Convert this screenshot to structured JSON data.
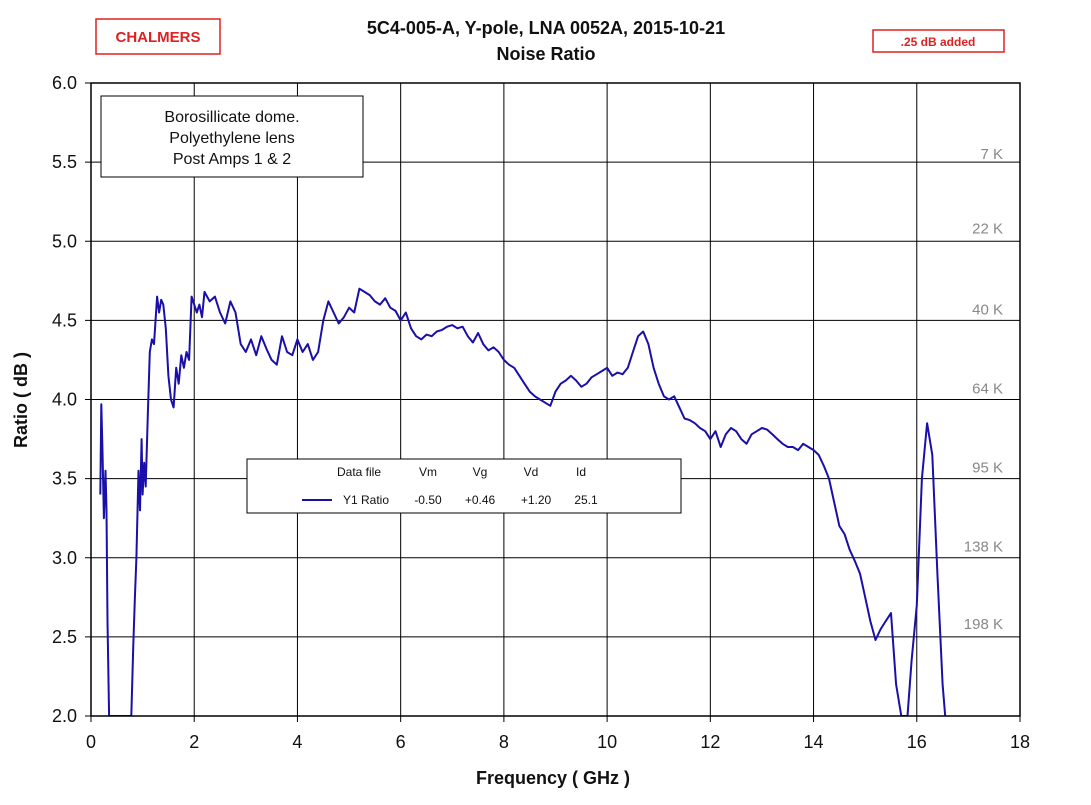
{
  "logo": "CHALMERS",
  "badge": ".25 dB added",
  "chart_data": {
    "type": "line",
    "title": "5C4-005-A,  Y-pole,  LNA 0052A,  2015-10-21",
    "subtitle": "Noise Ratio",
    "xlabel": "Frequency  ( GHz )",
    "ylabel": "Ratio  ( dB )",
    "xlim": [
      0,
      18
    ],
    "ylim": [
      2.0,
      6.0
    ],
    "xticks": [
      0,
      2,
      4,
      6,
      8,
      10,
      12,
      14,
      16,
      18
    ],
    "yticks": [
      2.0,
      2.5,
      3.0,
      3.5,
      4.0,
      4.5,
      5.0,
      5.5,
      6.0
    ],
    "ytick_labels": [
      "2.0",
      "2.5",
      "3.0",
      "3.5",
      "4.0",
      "4.5",
      "5.0",
      "5.5",
      "6.0"
    ],
    "grid": true,
    "temperature_labels": [
      {
        "label": "7 K",
        "y": 5.55
      },
      {
        "label": "22 K",
        "y": 5.08
      },
      {
        "label": "40 K",
        "y": 4.57
      },
      {
        "label": "64 K",
        "y": 4.07
      },
      {
        "label": "95 K",
        "y": 3.57
      },
      {
        "label": "138 K",
        "y": 3.07
      },
      {
        "label": "198 K",
        "y": 2.58
      }
    ],
    "annotation": [
      "Borosillicate dome.",
      "Polyethylene lens",
      "Post Amps 1 & 2"
    ],
    "legend": {
      "placement": "center",
      "headers": [
        "Data file",
        "Vm",
        "Vg",
        "Vd",
        "Id"
      ],
      "rows": [
        {
          "name": "Y1 Ratio",
          "Vm": "-0.50",
          "Vg": "+0.46",
          "Vd": "+1.20",
          "Id": "25.1"
        }
      ]
    },
    "series": [
      {
        "name": "Y1 Ratio",
        "color": "#1a0fa8",
        "x": [
          0.18,
          0.2,
          0.22,
          0.25,
          0.28,
          0.3,
          0.32,
          0.35,
          0.38,
          0.78,
          0.82,
          0.85,
          0.88,
          0.92,
          0.95,
          0.98,
          1.0,
          1.03,
          1.06,
          1.1,
          1.14,
          1.18,
          1.22,
          1.28,
          1.32,
          1.36,
          1.4,
          1.45,
          1.5,
          1.55,
          1.6,
          1.65,
          1.7,
          1.75,
          1.8,
          1.85,
          1.9,
          1.95,
          2.0,
          2.05,
          2.1,
          2.15,
          2.2,
          2.3,
          2.4,
          2.5,
          2.6,
          2.7,
          2.8,
          2.9,
          3.0,
          3.1,
          3.2,
          3.3,
          3.4,
          3.5,
          3.6,
          3.7,
          3.8,
          3.9,
          4.0,
          4.1,
          4.2,
          4.3,
          4.4,
          4.5,
          4.6,
          4.7,
          4.8,
          4.9,
          5.0,
          5.1,
          5.2,
          5.3,
          5.4,
          5.5,
          5.6,
          5.7,
          5.8,
          5.9,
          6.0,
          6.1,
          6.2,
          6.3,
          6.4,
          6.5,
          6.6,
          6.7,
          6.8,
          6.9,
          7.0,
          7.1,
          7.2,
          7.3,
          7.4,
          7.5,
          7.6,
          7.7,
          7.8,
          7.9,
          8.0,
          8.1,
          8.2,
          8.3,
          8.4,
          8.5,
          8.6,
          8.7,
          8.8,
          8.9,
          9.0,
          9.1,
          9.2,
          9.3,
          9.4,
          9.5,
          9.6,
          9.7,
          9.8,
          9.9,
          10.0,
          10.1,
          10.2,
          10.3,
          10.4,
          10.5,
          10.6,
          10.7,
          10.8,
          10.9,
          11.0,
          11.1,
          11.2,
          11.3,
          11.4,
          11.5,
          11.6,
          11.7,
          11.8,
          11.9,
          12.0,
          12.1,
          12.2,
          12.3,
          12.4,
          12.5,
          12.6,
          12.7,
          12.8,
          12.9,
          13.0,
          13.1,
          13.2,
          13.3,
          13.4,
          13.5,
          13.6,
          13.7,
          13.8,
          13.9,
          14.0,
          14.1,
          14.2,
          14.3,
          14.4,
          14.5,
          14.6,
          14.7,
          14.8,
          14.9,
          15.0,
          15.1,
          15.2,
          15.3,
          15.4,
          15.5,
          15.6,
          15.7,
          15.75,
          15.82,
          15.9,
          16.0,
          16.1,
          16.2,
          16.3,
          16.4,
          16.5,
          16.55
        ],
        "y": [
          3.4,
          3.97,
          3.7,
          3.25,
          3.55,
          3.3,
          2.6,
          2.0,
          2.0,
          2.0,
          2.45,
          2.75,
          3.0,
          3.55,
          3.3,
          3.75,
          3.4,
          3.6,
          3.45,
          3.9,
          4.3,
          4.38,
          4.35,
          4.65,
          4.55,
          4.63,
          4.6,
          4.45,
          4.15,
          4.0,
          3.95,
          4.2,
          4.1,
          4.28,
          4.2,
          4.3,
          4.25,
          4.65,
          4.6,
          4.55,
          4.6,
          4.52,
          4.68,
          4.62,
          4.65,
          4.55,
          4.48,
          4.62,
          4.55,
          4.35,
          4.3,
          4.38,
          4.28,
          4.4,
          4.32,
          4.25,
          4.22,
          4.4,
          4.3,
          4.28,
          4.38,
          4.3,
          4.35,
          4.25,
          4.3,
          4.5,
          4.62,
          4.55,
          4.48,
          4.52,
          4.58,
          4.55,
          4.7,
          4.68,
          4.66,
          4.62,
          4.6,
          4.64,
          4.58,
          4.56,
          4.5,
          4.55,
          4.45,
          4.4,
          4.38,
          4.41,
          4.4,
          4.43,
          4.44,
          4.46,
          4.47,
          4.45,
          4.46,
          4.4,
          4.36,
          4.42,
          4.35,
          4.31,
          4.33,
          4.3,
          4.25,
          4.22,
          4.2,
          4.15,
          4.1,
          4.05,
          4.02,
          4.0,
          3.98,
          3.96,
          4.05,
          4.1,
          4.12,
          4.15,
          4.12,
          4.08,
          4.1,
          4.14,
          4.16,
          4.18,
          4.2,
          4.15,
          4.17,
          4.16,
          4.2,
          4.3,
          4.4,
          4.43,
          4.35,
          4.2,
          4.1,
          4.02,
          4.0,
          4.02,
          3.95,
          3.88,
          3.87,
          3.85,
          3.82,
          3.8,
          3.75,
          3.8,
          3.7,
          3.78,
          3.82,
          3.8,
          3.75,
          3.72,
          3.78,
          3.8,
          3.82,
          3.81,
          3.78,
          3.75,
          3.72,
          3.7,
          3.7,
          3.68,
          3.72,
          3.7,
          3.68,
          3.65,
          3.58,
          3.5,
          3.35,
          3.2,
          3.15,
          3.05,
          2.98,
          2.9,
          2.75,
          2.6,
          2.48,
          2.55,
          2.6,
          2.65,
          2.2,
          2.0,
          2.0,
          2.0,
          2.35,
          2.7,
          3.5,
          3.85,
          3.65,
          2.9,
          2.2,
          2.0
        ]
      }
    ]
  }
}
